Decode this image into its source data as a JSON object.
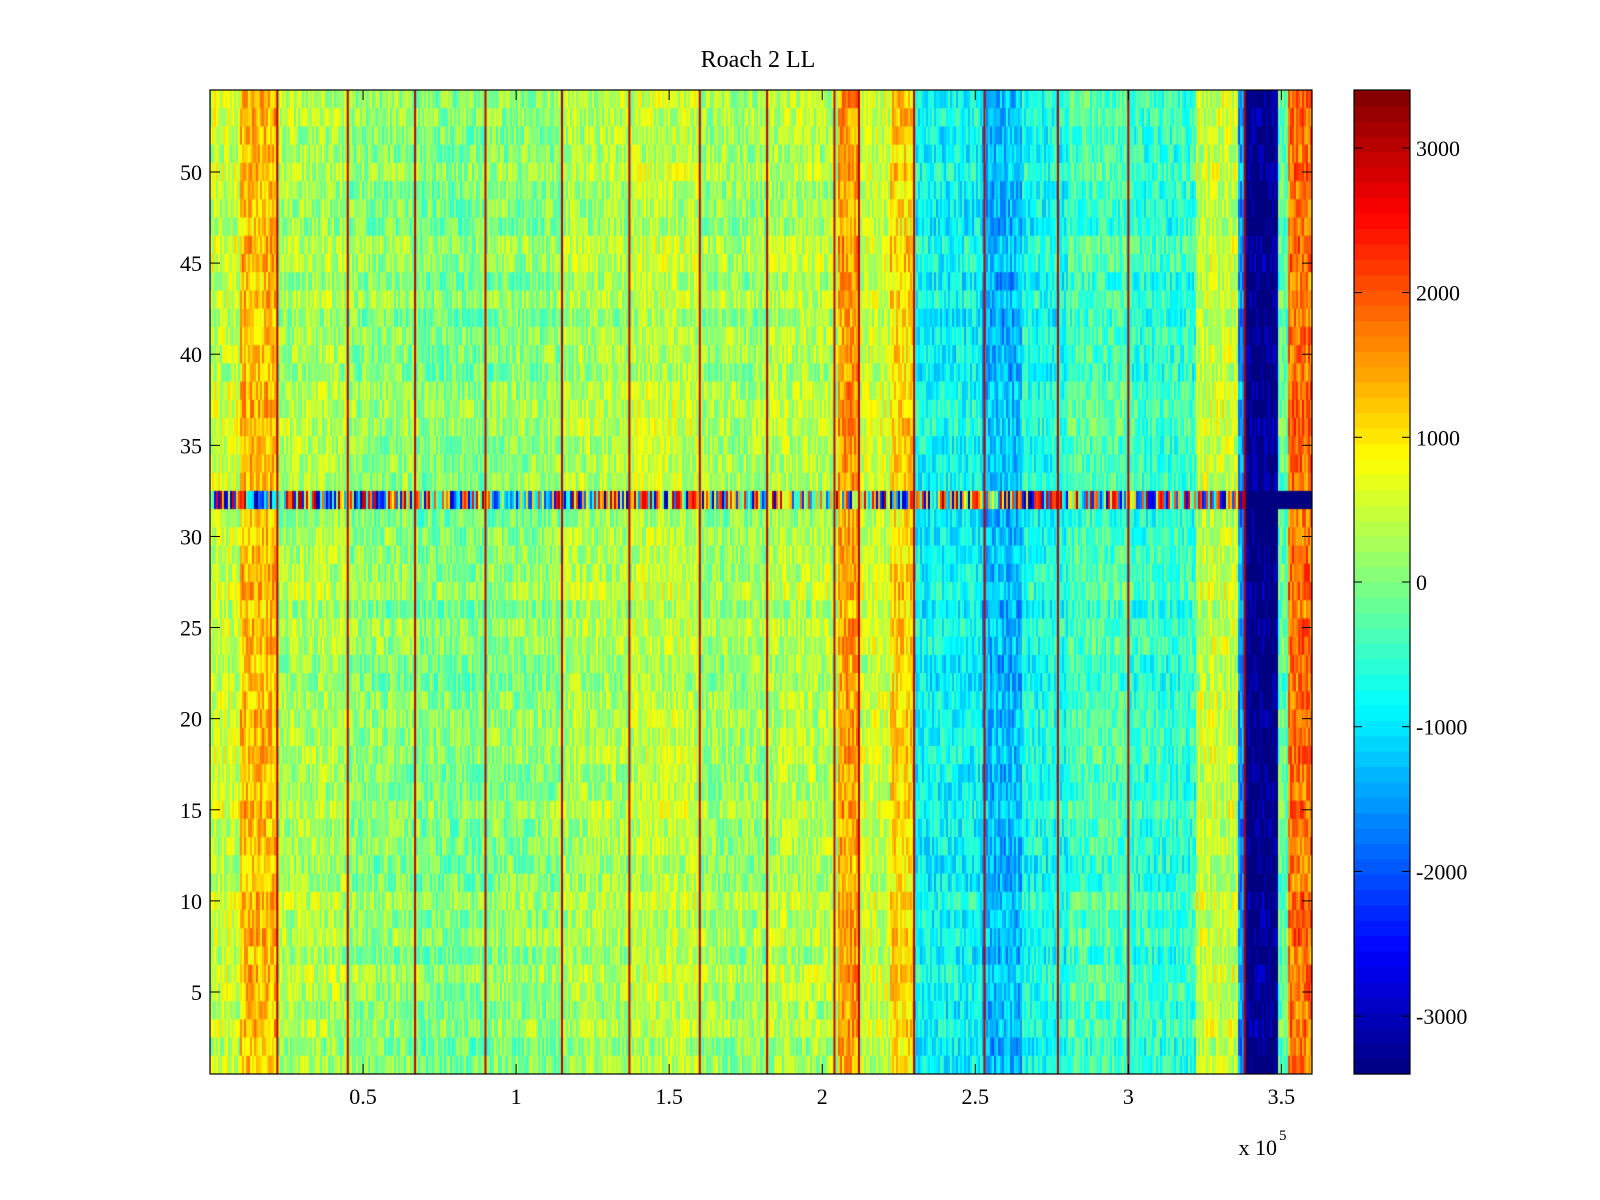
{
  "chart_data": {
    "type": "heatmap",
    "title": "Roach 2 LL",
    "xlabel": "",
    "ylabel": "",
    "x_range": [
      0,
      360000
    ],
    "y_range": [
      0.5,
      54.5
    ],
    "x_exponent_label": "x 10",
    "x_exponent_power": "5",
    "x_ticks": [
      {
        "value": 50000,
        "label": "0.5"
      },
      {
        "value": 100000,
        "label": "1"
      },
      {
        "value": 150000,
        "label": "1.5"
      },
      {
        "value": 200000,
        "label": "2"
      },
      {
        "value": 250000,
        "label": "2.5"
      },
      {
        "value": 300000,
        "label": "3"
      },
      {
        "value": 350000,
        "label": "3.5"
      }
    ],
    "y_ticks": [
      {
        "value": 5,
        "label": "5"
      },
      {
        "value": 10,
        "label": "10"
      },
      {
        "value": 15,
        "label": "15"
      },
      {
        "value": 20,
        "label": "20"
      },
      {
        "value": 25,
        "label": "25"
      },
      {
        "value": 30,
        "label": "30"
      },
      {
        "value": 35,
        "label": "35"
      },
      {
        "value": 40,
        "label": "40"
      },
      {
        "value": 45,
        "label": "45"
      },
      {
        "value": 50,
        "label": "50"
      }
    ],
    "colorbar": {
      "colormap": "jet",
      "range": [
        -3400,
        3400
      ],
      "ticks": [
        {
          "value": 3000,
          "label": "3000"
        },
        {
          "value": 2000,
          "label": "2000"
        },
        {
          "value": 1000,
          "label": "1000"
        },
        {
          "value": 0,
          "label": "0"
        },
        {
          "value": -1000,
          "label": "-1000"
        },
        {
          "value": -2000,
          "label": "-2000"
        },
        {
          "value": -3000,
          "label": "-3000"
        }
      ]
    },
    "column_profile": [
      {
        "x0": 0,
        "x1": 10000,
        "value": 500
      },
      {
        "x0": 10000,
        "x1": 22000,
        "value": 1300
      },
      {
        "x0": 22000,
        "x1": 45000,
        "value": 300
      },
      {
        "x0": 45000,
        "x1": 68000,
        "value": 100
      },
      {
        "x0": 68000,
        "x1": 92000,
        "value": 0
      },
      {
        "x0": 92000,
        "x1": 115000,
        "value": 100
      },
      {
        "x0": 115000,
        "x1": 138000,
        "value": 300
      },
      {
        "x0": 138000,
        "x1": 160000,
        "value": 450
      },
      {
        "x0": 160000,
        "x1": 182000,
        "value": 200
      },
      {
        "x0": 182000,
        "x1": 205000,
        "value": 350
      },
      {
        "x0": 205000,
        "x1": 212000,
        "value": 1500
      },
      {
        "x0": 212000,
        "x1": 222000,
        "value": 500
      },
      {
        "x0": 222000,
        "x1": 230000,
        "value": 1100
      },
      {
        "x0": 230000,
        "x1": 252000,
        "value": -800
      },
      {
        "x0": 252000,
        "x1": 265000,
        "value": -1300
      },
      {
        "x0": 265000,
        "x1": 280000,
        "value": -700
      },
      {
        "x0": 280000,
        "x1": 300000,
        "value": -350
      },
      {
        "x0": 300000,
        "x1": 322000,
        "value": -500
      },
      {
        "x0": 322000,
        "x1": 336000,
        "value": 500
      },
      {
        "x0": 336000,
        "x1": 338000,
        "value": -1500
      },
      {
        "x0": 338000,
        "x1": 349000,
        "value": -3400
      },
      {
        "x0": 349000,
        "x1": 352000,
        "value": -200
      },
      {
        "x0": 352000,
        "x1": 360000,
        "value": 1800
      }
    ],
    "spike_columns": [
      22000,
      45000,
      67000,
      90000,
      115000,
      137000,
      160000,
      182000,
      204000,
      212000,
      230000,
      253000,
      277000,
      300000,
      338000
    ],
    "spike_value": 3000,
    "anomaly_row": {
      "y": 32,
      "description": "strongly alternating values across full width"
    },
    "left_stripe_value": -3400,
    "left_stripe_x": [
      338000,
      348000
    ]
  }
}
